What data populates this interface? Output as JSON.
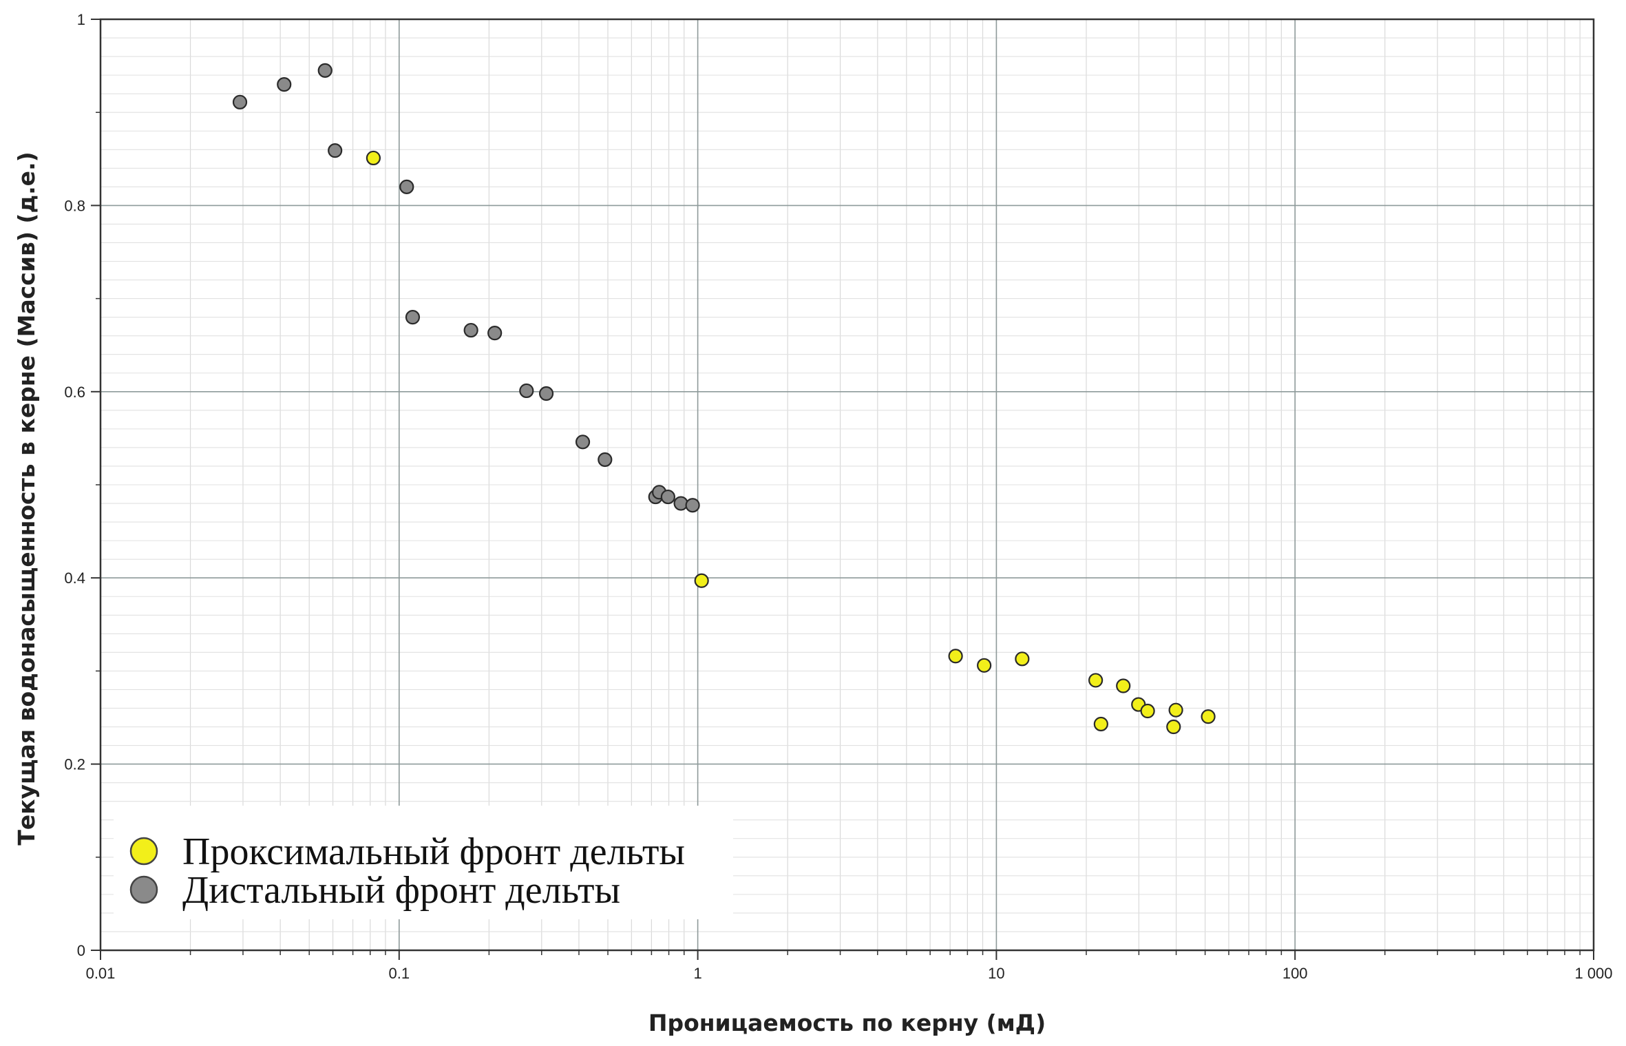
{
  "chart_data": {
    "type": "scatter",
    "xlabel": "Проницаемость по керну (мД)",
    "ylabel": "Текущая водонасыщенность в керне (Массив) (д.е.)",
    "x_scale": "log",
    "xlim": [
      0.01,
      1000
    ],
    "ylim": [
      0,
      1
    ],
    "x_ticks": [
      "0.01",
      "0.1",
      "1",
      "10",
      "100",
      "1 000"
    ],
    "y_ticks": [
      "0",
      "0.2",
      "0.4",
      "0.6",
      "0.8",
      "1"
    ],
    "grid": true,
    "legend_position": "bottom-left",
    "series": [
      {
        "name": "Проксимальный фронт дельты",
        "color": "#f2ef1a",
        "points": [
          [
            0.082,
            0.851
          ],
          [
            1.03,
            0.397
          ],
          [
            7.3,
            0.316
          ],
          [
            9.1,
            0.306
          ],
          [
            12.2,
            0.313
          ],
          [
            21.5,
            0.29
          ],
          [
            22.4,
            0.243
          ],
          [
            26.6,
            0.284
          ],
          [
            29.9,
            0.264
          ],
          [
            32.1,
            0.257
          ],
          [
            39.2,
            0.24
          ],
          [
            39.9,
            0.258
          ],
          [
            51.2,
            0.251
          ]
        ]
      },
      {
        "name": "Дистальный фронт дельты",
        "color": "#8a8a8a",
        "points": [
          [
            0.0293,
            0.911
          ],
          [
            0.0412,
            0.93
          ],
          [
            0.0565,
            0.945
          ],
          [
            0.061,
            0.859
          ],
          [
            0.106,
            0.82
          ],
          [
            0.111,
            0.68
          ],
          [
            0.174,
            0.666
          ],
          [
            0.209,
            0.663
          ],
          [
            0.267,
            0.601
          ],
          [
            0.311,
            0.598
          ],
          [
            0.412,
            0.546
          ],
          [
            0.489,
            0.527
          ],
          [
            0.722,
            0.487
          ],
          [
            0.743,
            0.492
          ],
          [
            0.795,
            0.487
          ],
          [
            0.878,
            0.48
          ],
          [
            0.961,
            0.478
          ]
        ]
      }
    ]
  }
}
